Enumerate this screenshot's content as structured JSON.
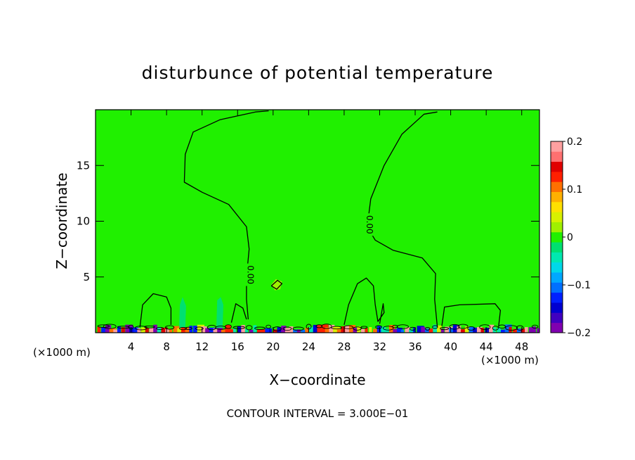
{
  "chart_data": {
    "type": "heatmap",
    "title": "disturbunce of potential temperature",
    "xlabel": "X−coordinate",
    "ylabel": "Z−coordinate",
    "x_unit": "(×1000 m)",
    "footer": "CONTOUR INTERVAL = 3.000E−01",
    "xlim": [
      0,
      50
    ],
    "ylim": [
      0,
      20
    ],
    "x_ticks": [
      4,
      8,
      12,
      16,
      20,
      24,
      28,
      32,
      36,
      40,
      44,
      48
    ],
    "y_ticks": [
      5,
      10,
      15
    ],
    "contour_label": "0.00",
    "contour_interval": 0.3,
    "colorbar": {
      "min": -0.2,
      "max": 0.2,
      "tick_values": [
        0.2,
        0.1,
        0,
        -0.1,
        -0.2
      ],
      "tick_labels": [
        "0.2",
        "0.1",
        "0",
        "−0.1",
        "−0.2"
      ],
      "colors": [
        "#8000b0",
        "#4000c0",
        "#0000d0",
        "#0020ff",
        "#0070ff",
        "#00a8ff",
        "#00d8e8",
        "#00e8b0",
        "#00e070",
        "#20f000",
        "#a0f000",
        "#d8f000",
        "#ffe000",
        "#ffb000",
        "#ff7000",
        "#ff2000",
        "#e00000",
        "#ff7070",
        "#ffa0a0"
      ]
    },
    "background_value": 0,
    "regions": [
      {
        "value": 0.01,
        "points": [
          [
            39,
            0.6
          ],
          [
            39.5,
            2.3
          ],
          [
            44.5,
            2.5
          ],
          [
            45.5,
            1.5
          ],
          [
            45,
            0.5
          ]
        ]
      },
      {
        "value": 0.01,
        "points": [
          [
            5,
            0.6
          ],
          [
            5.3,
            2.8
          ],
          [
            6.5,
            3.4
          ],
          [
            8,
            3.1
          ],
          [
            8.5,
            1.5
          ],
          [
            8.3,
            0.5
          ]
        ]
      },
      {
        "value": 0.01,
        "points": [
          [
            28,
            0.6
          ],
          [
            28.8,
            3.5
          ],
          [
            30,
            4.8
          ],
          [
            31,
            4.5
          ],
          [
            31.5,
            2.5
          ],
          [
            31.5,
            0.6
          ]
        ]
      },
      {
        "value": 0.008,
        "points": [
          [
            16.8,
            1.5
          ],
          [
            17,
            5.5
          ],
          [
            17.5,
            7.6
          ],
          [
            17.2,
            10
          ],
          [
            14.5,
            12
          ],
          [
            10.5,
            13.5
          ],
          [
            10,
            16
          ],
          [
            11,
            18
          ],
          [
            15,
            19.6
          ],
          [
            26,
            19.6
          ],
          [
            36,
            20
          ],
          [
            38,
            20
          ],
          [
            33.2,
            17.5
          ],
          [
            31,
            13
          ],
          [
            30.5,
            9.2
          ],
          [
            33.5,
            7.5
          ],
          [
            37,
            6.8
          ],
          [
            38.5,
            5.2
          ],
          [
            38,
            0.8
          ],
          [
            33,
            0.7
          ],
          [
            32,
            1
          ],
          [
            32.5,
            2.5
          ],
          [
            32,
            4.2
          ],
          [
            30.5,
            5
          ],
          [
            29,
            4.2
          ],
          [
            28,
            1.8
          ],
          [
            27,
            0.8
          ],
          [
            22,
            0.8
          ],
          [
            18.5,
            0.7
          ]
        ]
      },
      {
        "value": -0.02,
        "points": [
          [
            9.4,
            0.2
          ],
          [
            9.5,
            2.5
          ],
          [
            9.8,
            3.2
          ],
          [
            10.2,
            2.4
          ],
          [
            10.1,
            0.3
          ]
        ]
      },
      {
        "value": -0.02,
        "points": [
          [
            13.6,
            0.3
          ],
          [
            13.7,
            2.9
          ],
          [
            14.1,
            3.2
          ],
          [
            14.4,
            2.5
          ],
          [
            14.3,
            0.3
          ]
        ]
      },
      {
        "value": 0.03,
        "points": [
          [
            19.8,
            4.3
          ],
          [
            20.3,
            4.8
          ],
          [
            21,
            4.6
          ],
          [
            20.8,
            3.9
          ],
          [
            20.2,
            3.8
          ]
        ]
      }
    ],
    "contours": [
      {
        "label": "0.00",
        "label_at": [
          30.8,
          9.7
        ],
        "points": [
          [
            38.5,
            0.5
          ],
          [
            38.2,
            3.0
          ],
          [
            38.3,
            5.3
          ],
          [
            36.8,
            6.7
          ],
          [
            33.5,
            7.4
          ],
          [
            31.5,
            8.3
          ],
          [
            30.6,
            9.5
          ],
          [
            31.0,
            12.0
          ],
          [
            32.5,
            15.0
          ],
          [
            34.5,
            17.8
          ],
          [
            37.0,
            19.6
          ],
          [
            38.5,
            19.8
          ]
        ]
      },
      {
        "label": "0.00",
        "label_at": [
          17.4,
          5.2
        ],
        "points": [
          [
            17.2,
            1.2
          ],
          [
            17.0,
            3.0
          ],
          [
            17.0,
            5.0
          ],
          [
            17.3,
            7.5
          ],
          [
            17.0,
            9.5
          ],
          [
            15.0,
            11.5
          ],
          [
            12.0,
            12.6
          ],
          [
            10.0,
            13.5
          ],
          [
            10.1,
            16.0
          ],
          [
            11.0,
            18.0
          ],
          [
            14.0,
            19.1
          ],
          [
            18.0,
            19.8
          ],
          [
            19.5,
            19.9
          ]
        ]
      },
      {
        "points": [
          [
            5.0,
            0.5
          ],
          [
            5.3,
            2.5
          ],
          [
            6.5,
            3.5
          ],
          [
            8.0,
            3.2
          ],
          [
            8.5,
            2.2
          ],
          [
            8.5,
            0.7
          ]
        ]
      },
      {
        "points": [
          [
            28.0,
            0.7
          ],
          [
            28.5,
            2.5
          ],
          [
            29.5,
            4.4
          ],
          [
            30.5,
            4.9
          ],
          [
            31.3,
            4.2
          ],
          [
            31.5,
            2.5
          ],
          [
            31.8,
            1.0
          ],
          [
            32.5,
            1.8
          ],
          [
            32.4,
            2.6
          ],
          [
            32.0,
            0.8
          ]
        ]
      },
      {
        "points": [
          [
            15.3,
            0.9
          ],
          [
            15.8,
            2.6
          ],
          [
            16.6,
            2.2
          ],
          [
            17.0,
            1.2
          ]
        ]
      },
      {
        "points": [
          [
            39.0,
            0.6
          ],
          [
            39.3,
            2.3
          ],
          [
            41.0,
            2.5
          ],
          [
            45.0,
            2.6
          ],
          [
            45.6,
            2.0
          ],
          [
            45.4,
            0.6
          ]
        ]
      },
      {
        "points": [
          [
            19.8,
            4.2
          ],
          [
            20.5,
            4.7
          ],
          [
            21.0,
            4.4
          ],
          [
            20.4,
            3.9
          ],
          [
            19.8,
            4.2
          ]
        ]
      }
    ]
  }
}
